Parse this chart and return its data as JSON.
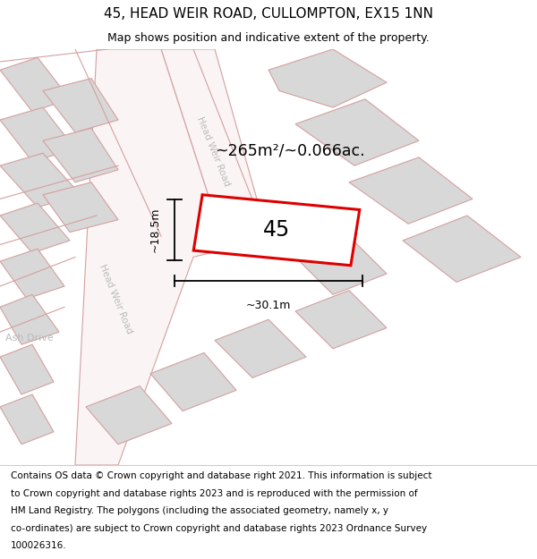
{
  "title_line1": "45, HEAD WEIR ROAD, CULLOMPTON, EX15 1NN",
  "title_line2": "Map shows position and indicative extent of the property.",
  "footer_lines": [
    "Contains OS data © Crown copyright and database right 2021. This information is subject",
    "to Crown copyright and database rights 2023 and is reproduced with the permission of",
    "HM Land Registry. The polygons (including the associated geometry, namely x, y",
    "co-ordinates) are subject to Crown copyright and database rights 2023 Ordnance Survey",
    "100026316."
  ],
  "area_label": "~265m²/~0.066ac.",
  "property_number": "45",
  "width_label": "~30.1m",
  "height_label": "~18.5m",
  "map_bg": "#ffffff",
  "building_fill": "#d8d8d8",
  "road_line_color": "#d4a0a0",
  "property_outline_color": "#dd0000",
  "dim_line_color": "#000000",
  "road_label_color": "#bbbbbb",
  "title_fontsize": 11,
  "subtitle_fontsize": 9,
  "footer_fontsize": 7.5
}
